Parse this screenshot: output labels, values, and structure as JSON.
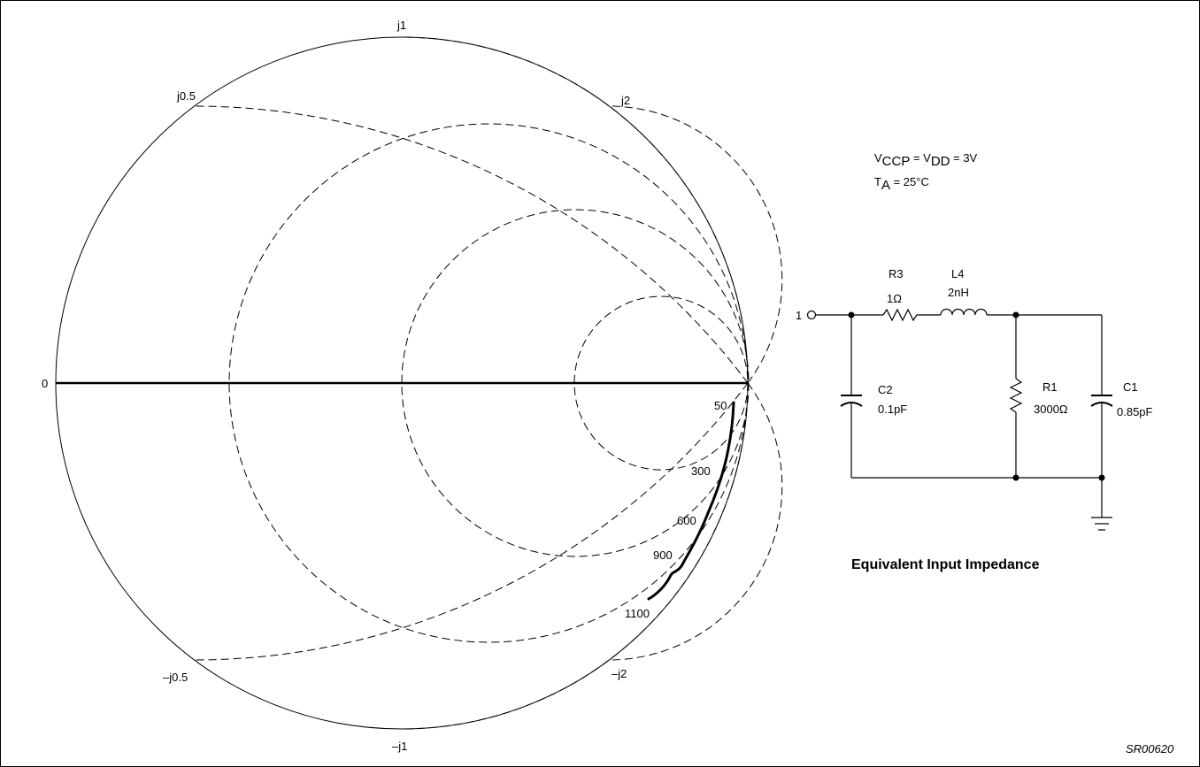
{
  "smith_chart": {
    "labels": {
      "zero": "0",
      "j1": "j1",
      "j05": "j0.5",
      "j2": "j2",
      "mj05": "–j0.5",
      "mj1": "–j1",
      "mj2": "–j2"
    },
    "freq_labels": {
      "f50": "50",
      "f300": "300",
      "f600": "600",
      "f900": "900",
      "f1100": "1100"
    }
  },
  "conditions": {
    "vccp_sub": "CCP",
    "vdd_sub": "DD",
    "vcc_eq": " = V",
    "v_value": " = 3V",
    "ta_sub": "A",
    "ta_value": " = 25°C"
  },
  "circuit": {
    "node": "1",
    "r3_name": "R3",
    "r3_value": "1Ω",
    "l4_name": "L4",
    "l4_value": "2nH",
    "c2_name": "C2",
    "c2_value": "0.1pF",
    "r1_name": "R1",
    "r1_value": "3000Ω",
    "c1_name": "C1",
    "c1_value": "0.85pF",
    "title": "Equivalent Input Impedance"
  },
  "figure_ref": "SR00620"
}
